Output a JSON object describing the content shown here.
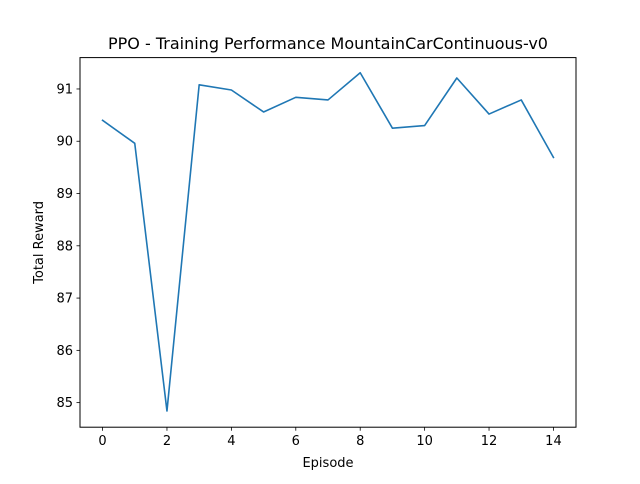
{
  "chart_data": {
    "type": "line",
    "title": "PPO - Training Performance MountainCarContinuous-v0",
    "xlabel": "Episode",
    "ylabel": "Total Reward",
    "xlim": [
      -0.7,
      14.7
    ],
    "ylim": [
      84.53,
      91.6
    ],
    "xticks": [
      0,
      2,
      4,
      6,
      8,
      10,
      12,
      14
    ],
    "yticks": [
      85,
      86,
      87,
      88,
      89,
      90,
      91
    ],
    "grid": false,
    "legend": "none",
    "series": [
      {
        "color": "#1f77b4",
        "x": [
          0,
          1,
          2,
          3,
          4,
          5,
          6,
          7,
          8,
          9,
          10,
          11,
          12,
          13,
          14
        ],
        "y": [
          90.4,
          89.96,
          84.84,
          91.08,
          90.98,
          90.56,
          90.84,
          90.79,
          91.31,
          90.25,
          90.3,
          91.21,
          90.52,
          90.79,
          89.69
        ]
      }
    ]
  }
}
